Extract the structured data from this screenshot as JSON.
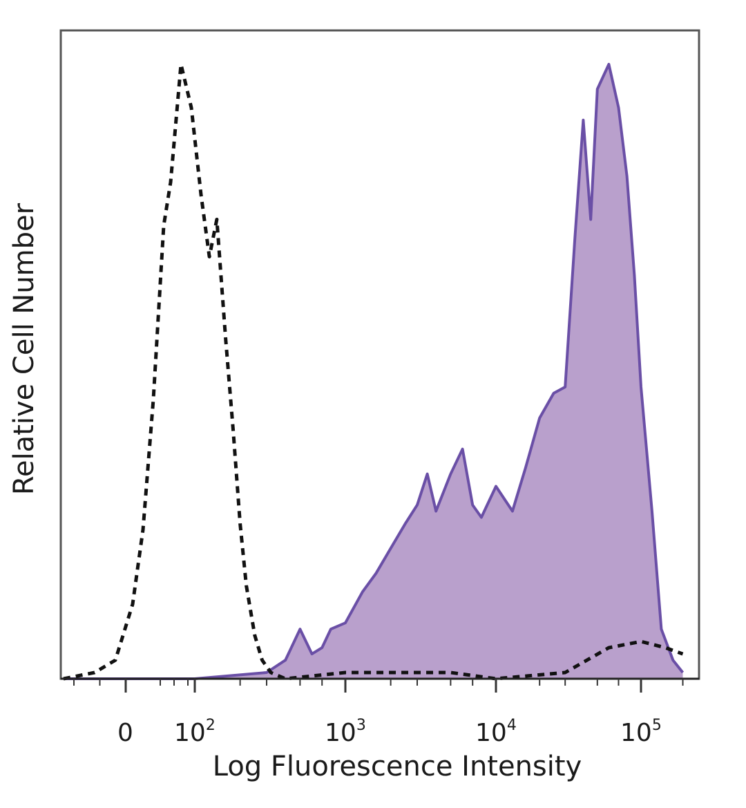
{
  "chart_data": {
    "type": "area",
    "title": "",
    "xlabel": "Log Fluorescence Intensity",
    "ylabel": "Relative Cell Number",
    "x_scale": "biexponential (log above 10^2)",
    "x_tick_labels": [
      {
        "base": "0",
        "exp": ""
      },
      {
        "base": "10",
        "exp": "2"
      },
      {
        "base": "10",
        "exp": "3"
      },
      {
        "base": "10",
        "exp": "4"
      },
      {
        "base": "10",
        "exp": "5"
      }
    ],
    "x_tick_values": [
      0,
      100,
      1000,
      10000,
      100000
    ],
    "ylim": [
      0,
      100
    ],
    "grid": false,
    "legend": "none",
    "series": [
      {
        "style": "dashed-black",
        "fill": "none",
        "color": "#111111",
        "points": [
          [
            -120,
            0
          ],
          [
            -60,
            1
          ],
          [
            -20,
            3
          ],
          [
            10,
            12
          ],
          [
            25,
            24
          ],
          [
            40,
            45
          ],
          [
            55,
            73
          ],
          [
            65,
            80
          ],
          [
            80,
            99
          ],
          [
            95,
            92
          ],
          [
            110,
            78
          ],
          [
            125,
            68
          ],
          [
            140,
            74
          ],
          [
            160,
            55
          ],
          [
            180,
            40
          ],
          [
            200,
            25
          ],
          [
            220,
            15
          ],
          [
            250,
            7
          ],
          [
            280,
            3
          ],
          [
            320,
            1
          ],
          [
            400,
            0
          ],
          [
            1000,
            1
          ],
          [
            5000,
            1
          ],
          [
            10000,
            0
          ],
          [
            30000,
            1
          ],
          [
            60000,
            5
          ],
          [
            100000,
            6
          ],
          [
            150000,
            5
          ],
          [
            200000,
            4
          ]
        ]
      },
      {
        "style": "solid-purple",
        "fill": "#b9a0cc",
        "color": "#6a4fa6",
        "points": [
          [
            -120,
            0
          ],
          [
            100,
            0
          ],
          [
            300,
            1
          ],
          [
            400,
            3
          ],
          [
            500,
            8
          ],
          [
            600,
            4
          ],
          [
            700,
            5
          ],
          [
            800,
            8
          ],
          [
            1000,
            9
          ],
          [
            1300,
            14
          ],
          [
            1600,
            17
          ],
          [
            2000,
            21
          ],
          [
            2500,
            25
          ],
          [
            3000,
            28
          ],
          [
            3500,
            33
          ],
          [
            4000,
            27
          ],
          [
            5000,
            33
          ],
          [
            6000,
            37
          ],
          [
            7000,
            28
          ],
          [
            8000,
            26
          ],
          [
            10000,
            31
          ],
          [
            13000,
            27
          ],
          [
            16000,
            34
          ],
          [
            20000,
            42
          ],
          [
            25000,
            46
          ],
          [
            30000,
            47
          ],
          [
            35000,
            71
          ],
          [
            40000,
            90
          ],
          [
            45000,
            74
          ],
          [
            50000,
            95
          ],
          [
            60000,
            99
          ],
          [
            70000,
            92
          ],
          [
            80000,
            81
          ],
          [
            90000,
            65
          ],
          [
            100000,
            47
          ],
          [
            120000,
            27
          ],
          [
            140000,
            8
          ],
          [
            170000,
            3
          ],
          [
            200000,
            1
          ]
        ]
      }
    ]
  },
  "colors": {
    "purple_fill": "#b9a0cc",
    "purple_line": "#6a4fa6",
    "dashed_line": "#111111",
    "frame": "#555555"
  }
}
